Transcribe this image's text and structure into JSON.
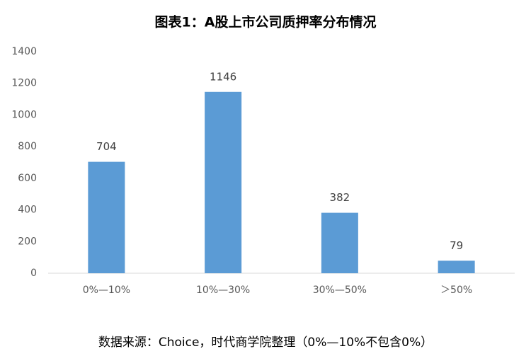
{
  "chart_data": {
    "type": "bar",
    "title": "图表1：A股上市公司质押率分布情况",
    "categories": [
      "0%—10%",
      "10%—30%",
      "30%—50%",
      "＞50%"
    ],
    "values": [
      704,
      1146,
      382,
      79
    ],
    "color": "#5b9bd5",
    "ylim": [
      0,
      1400
    ],
    "yticks": [
      0,
      200,
      400,
      600,
      800,
      1000,
      1200,
      1400
    ],
    "grid": false,
    "source": "数据来源：Choice，时代商学院整理（0%—10%不包含0%）"
  }
}
